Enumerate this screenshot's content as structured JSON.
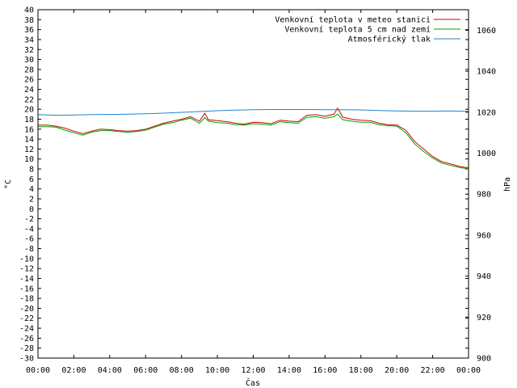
{
  "chart_data": {
    "type": "line",
    "xlabel": "Čas",
    "ylabel_left": "°C",
    "ylabel_right": "hPa",
    "x_tick_labels": [
      "00:00",
      "02:00",
      "04:00",
      "06:00",
      "08:00",
      "10:00",
      "12:00",
      "14:00",
      "16:00",
      "18:00",
      "20:00",
      "22:00",
      "00:00"
    ],
    "xlim_hours": [
      0,
      24
    ],
    "ylim_left": [
      -30,
      40
    ],
    "ylim_right": [
      900,
      1070
    ],
    "left_ticks": [
      -30,
      -28,
      -26,
      -24,
      -22,
      -20,
      -18,
      -16,
      -14,
      -12,
      -10,
      -8,
      -6,
      -4,
      -2,
      0,
      2,
      4,
      6,
      8,
      10,
      12,
      14,
      16,
      18,
      20,
      22,
      24,
      26,
      28,
      30,
      32,
      34,
      36,
      38,
      40
    ],
    "right_ticks": [
      900,
      920,
      940,
      960,
      980,
      1000,
      1020,
      1040,
      1060
    ],
    "legend_position": "top-right",
    "series": [
      {
        "name": "Venkovní teplota v meteo stanici",
        "color": "#cc0000",
        "axis": "left",
        "x": [
          0,
          0.5,
          1,
          1.5,
          2,
          2.5,
          3,
          3.5,
          4,
          4.5,
          5,
          5.5,
          6,
          6.5,
          7,
          7.5,
          8,
          8.5,
          9,
          9.3,
          9.5,
          10,
          10.5,
          11,
          11.5,
          12,
          12.5,
          13,
          13.5,
          14,
          14.5,
          15,
          15.5,
          16,
          16.5,
          16.7,
          17,
          17.5,
          18,
          18.5,
          19,
          19.5,
          20,
          20.5,
          21,
          21.5,
          22,
          22.5,
          23,
          23.5,
          24
        ],
        "y": [
          16.8,
          16.8,
          16.6,
          16.2,
          15.6,
          15.1,
          15.6,
          16.0,
          15.9,
          15.7,
          15.6,
          15.7,
          16.0,
          16.6,
          17.2,
          17.6,
          18.0,
          18.5,
          17.6,
          19.2,
          17.9,
          17.7,
          17.5,
          17.2,
          17.0,
          17.4,
          17.3,
          17.1,
          17.8,
          17.6,
          17.5,
          18.8,
          18.9,
          18.6,
          19.0,
          20.2,
          18.4,
          18.0,
          17.8,
          17.7,
          17.2,
          16.9,
          16.8,
          15.8,
          13.5,
          12.0,
          10.5,
          9.5,
          9.0,
          8.5,
          8.2
        ]
      },
      {
        "name": "Venkovní teplota 5 cm nad zemí",
        "color": "#00a000",
        "axis": "left",
        "x": [
          0,
          0.5,
          1,
          1.5,
          2,
          2.5,
          3,
          3.5,
          4,
          4.5,
          5,
          5.5,
          6,
          6.5,
          7,
          7.5,
          8,
          8.5,
          9,
          9.3,
          9.5,
          10,
          10.5,
          11,
          11.5,
          12,
          12.5,
          13,
          13.5,
          14,
          14.5,
          15,
          15.5,
          16,
          16.5,
          16.7,
          17,
          17.5,
          18,
          18.5,
          19,
          19.5,
          20,
          20.5,
          21,
          21.5,
          22,
          22.5,
          23,
          23.5,
          24
        ],
        "y": [
          16.5,
          16.5,
          16.4,
          15.8,
          15.3,
          14.8,
          15.4,
          15.7,
          15.7,
          15.5,
          15.4,
          15.5,
          15.8,
          16.4,
          17.0,
          17.3,
          17.8,
          18.2,
          17.2,
          18.3,
          17.6,
          17.3,
          17.2,
          16.9,
          16.8,
          17.1,
          17.0,
          16.8,
          17.5,
          17.3,
          17.2,
          18.4,
          18.5,
          18.2,
          18.5,
          19.0,
          17.9,
          17.6,
          17.4,
          17.4,
          16.9,
          16.7,
          16.6,
          15.3,
          13.0,
          11.5,
          10.2,
          9.2,
          8.7,
          8.3,
          8.0
        ]
      },
      {
        "name": "Atmosférický tlak",
        "color": "#1f84d2",
        "axis": "right",
        "x": [
          0,
          1,
          2,
          3,
          4,
          5,
          6,
          7,
          8,
          9,
          10,
          11,
          12,
          13,
          14,
          15,
          16,
          17,
          18,
          19,
          20,
          21,
          22,
          23,
          24
        ],
        "y": [
          1018.8,
          1018.5,
          1018.6,
          1018.8,
          1018.9,
          1019.0,
          1019.2,
          1019.5,
          1019.9,
          1020.3,
          1020.7,
          1021.0,
          1021.2,
          1021.3,
          1021.3,
          1021.3,
          1021.2,
          1021.2,
          1021.1,
          1020.8,
          1020.6,
          1020.5,
          1020.5,
          1020.6,
          1020.4
        ]
      }
    ]
  }
}
